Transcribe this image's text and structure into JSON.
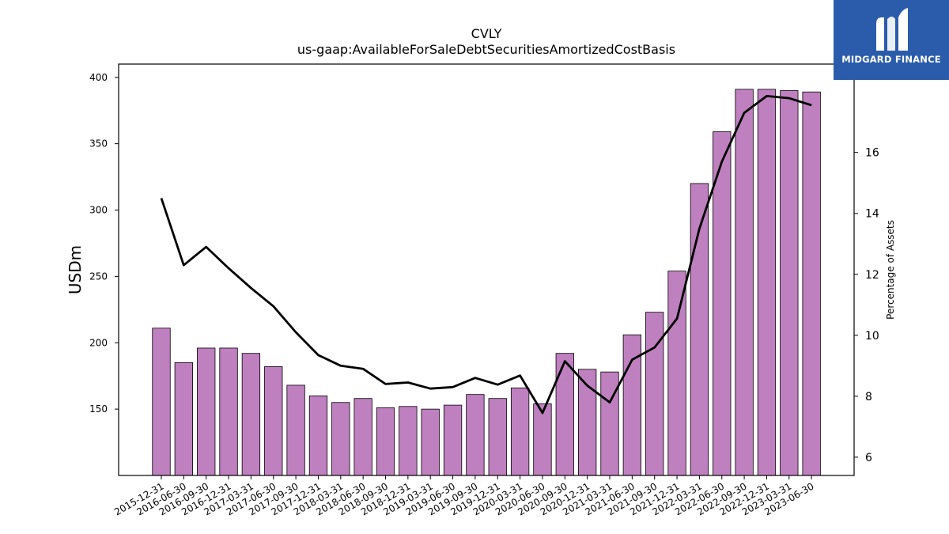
{
  "brand": {
    "name": "MIDGARD FINANCE",
    "logo_icon": "midgard-m-logo-icon",
    "bg_color": "#2b5cab"
  },
  "chart_data": {
    "type": "bar",
    "title": "CVLY",
    "subtitle": "us-gaap:AvailableForSaleDebtSecuritiesAmortizedCostBasis",
    "ylabel": "USDm",
    "y2label": "Percentage of Assets",
    "ylim": [
      100,
      410
    ],
    "y2lim": [
      5.4,
      18.9
    ],
    "yticks": [
      150,
      200,
      250,
      300,
      350,
      400
    ],
    "y2ticks": [
      6,
      8,
      10,
      12,
      14,
      16
    ],
    "bar_color": "#bf80bf",
    "line_color": "#000000",
    "categories": [
      "2015-12-31",
      "2016-06-30",
      "2016-09-30",
      "2016-12-31",
      "2017-03-31",
      "2017-06-30",
      "2017-09-30",
      "2017-12-31",
      "2018-03-31",
      "2018-06-30",
      "2018-09-30",
      "2018-12-31",
      "2019-03-31",
      "2019-06-30",
      "2019-09-30",
      "2019-12-31",
      "2020-03-31",
      "2020-06-30",
      "2020-09-30",
      "2020-12-31",
      "2021-03-31",
      "2021-06-30",
      "2021-09-30",
      "2021-12-31",
      "2022-03-31",
      "2022-06-30",
      "2022-09-30",
      "2022-12-31",
      "2023-03-31",
      "2023-06-30"
    ],
    "series": [
      {
        "type": "bar",
        "axis": "left",
        "values": [
          211,
          185,
          196,
          196,
          192,
          182,
          168,
          160,
          155,
          158,
          151,
          152,
          150,
          153,
          161,
          158,
          166,
          154,
          192,
          180,
          178,
          206,
          223,
          254,
          320,
          359,
          391,
          391,
          390,
          389
        ]
      },
      {
        "type": "line",
        "axis": "right",
        "values": [
          14.5,
          12.3,
          12.9,
          12.2,
          11.55,
          10.95,
          10.1,
          9.35,
          9.0,
          8.9,
          8.4,
          8.45,
          8.25,
          8.3,
          8.6,
          8.38,
          8.68,
          7.45,
          9.15,
          8.35,
          7.8,
          9.2,
          9.6,
          10.55,
          13.5,
          15.7,
          17.3,
          17.85,
          17.78,
          17.55
        ]
      }
    ]
  }
}
